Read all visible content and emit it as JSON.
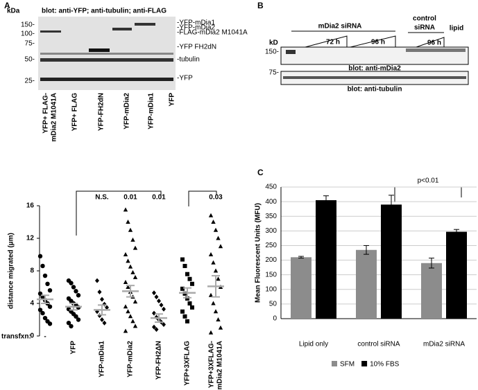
{
  "panel_a": {
    "label": "A",
    "kda": "kDa",
    "blot_title": "blot: anti-YFP; anti-tubulin; anti-FLAG",
    "markers": [
      "150-",
      "100-",
      "75-",
      "50-",
      "25-"
    ],
    "band_labels": [
      "-YFP-mDia1",
      "-YFP-mDia2",
      "-FLAG-mDia2 M1041A",
      "-YFP FH2dN",
      "-tubulin",
      "-YFP"
    ],
    "lanes": [
      [
        "YFP+ FLAG-",
        "mDia2 M1041A"
      ],
      [
        "YFP+ FLAG"
      ],
      [
        "YFP-FH2dN"
      ],
      [
        "YFP-mDia2"
      ],
      [
        "YFP-mDia1"
      ],
      [
        "YFP"
      ]
    ]
  },
  "panel_b": {
    "label": "B",
    "sirna": "mDia2 siRNA",
    "time_72": "72 h",
    "time_96": "96 h",
    "control": [
      "control",
      "siRNA"
    ],
    "control_time": "96 h",
    "lipid": "lipid",
    "kd": "kD",
    "marker_top": "150-",
    "marker_bottom": "75-",
    "blot_top": "blot: anti-mDia2",
    "blot_bottom": "blot: anti-tubulin"
  },
  "chart_data": [
    {
      "type": "dot",
      "y_label": "distance migrated (μm)",
      "row_label": "transfxn:",
      "ylim": [
        0,
        16
      ],
      "yticks": [
        0,
        4,
        8,
        12,
        16
      ],
      "categories": [
        [
          "-"
        ],
        [
          "YFP"
        ],
        [
          "YFP-mDia1"
        ],
        [
          "YFP-mDia2"
        ],
        [
          "YFP-FH2ΔN"
        ],
        [
          "YFP+3XFLAG"
        ],
        [
          "YFP+3XFLAG-",
          "mDia2 M1041A"
        ]
      ],
      "markers": [
        "circle",
        "circle",
        "diamond",
        "triangle",
        "diamond",
        "square",
        "triangle"
      ],
      "values": [
        4.5,
        3.6,
        3.2,
        5.5,
        2.2,
        5.3,
        6.1
      ],
      "errors": [
        0.5,
        0.4,
        0.6,
        0.7,
        0.5,
        0.6,
        1.3
      ],
      "points": [
        [
          9.8,
          8.6,
          7.4,
          6.4,
          5.6,
          5.2,
          4.8,
          4.4,
          4,
          3.6,
          3.2,
          2.8,
          2.2,
          1.8,
          1.5
        ],
        [
          6.8,
          6.5,
          6,
          5.5,
          5,
          4.6,
          4.3,
          4,
          3.8,
          3.5,
          3.3,
          3,
          2.7,
          2.4,
          2,
          1.6,
          1.2
        ],
        [
          6.8,
          5.4,
          4.5,
          3.9,
          3.5,
          3,
          2.5,
          2,
          1.6
        ],
        [
          15.5,
          14,
          13,
          11.8,
          10.8,
          10,
          9.2,
          8.5,
          7.8,
          7.2,
          6.6,
          6,
          5.4,
          4.8,
          4.2,
          3.6,
          3,
          2.4,
          1.8,
          1.2,
          0.6
        ],
        [
          5.3,
          4.8,
          4.3,
          3.8,
          3.3,
          2.8,
          2.3,
          2,
          1.7,
          1.4,
          1.1,
          0.8
        ],
        [
          9.4,
          8.6,
          7.6,
          7,
          6.4,
          5.8,
          5.2,
          4.6,
          4,
          3.5,
          3,
          2.4,
          1.8
        ],
        [
          14.8,
          14,
          13,
          12,
          11,
          10,
          9,
          8,
          7,
          6,
          5,
          4,
          3,
          2,
          1,
          0.4
        ]
      ],
      "sig_labels": [
        null,
        null,
        "N.S.",
        "0.01",
        "0.01",
        null,
        "0.03"
      ]
    },
    {
      "type": "bar",
      "label": "C",
      "y_label": "Mean Fluorescent Units (MFU)",
      "ylim": [
        0,
        450
      ],
      "yticks": [
        0,
        50,
        100,
        150,
        200,
        250,
        300,
        350,
        400,
        450
      ],
      "grid": true,
      "categories": [
        "Lipid only",
        "control siRNA",
        "mDia2 siRNA"
      ],
      "series": [
        {
          "name": "SFM",
          "color": "#8c8c8c",
          "values": [
            210,
            235,
            190
          ],
          "errors": [
            3,
            15,
            17
          ]
        },
        {
          "name": "10% FBS",
          "color": "#000000",
          "values": [
            405,
            390,
            297
          ],
          "errors": [
            15,
            32,
            8
          ]
        }
      ],
      "annotation": "p<0.01",
      "legend": "bottom"
    }
  ]
}
